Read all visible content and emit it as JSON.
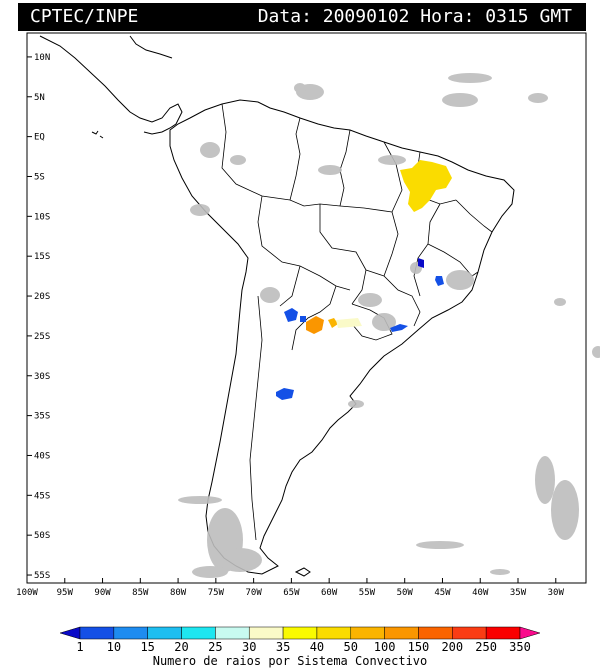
{
  "header": {
    "org": "CPTEC/INPE",
    "timestamp": "Data: 20090102 Hora: 0315 GMT"
  },
  "map": {
    "lat_range": [
      -56,
      13
    ],
    "lon_range": [
      -100,
      -26
    ],
    "lat_ticks": [
      "10N",
      "5N",
      "EQ",
      "5S",
      "10S",
      "15S",
      "20S",
      "25S",
      "30S",
      "35S",
      "40S",
      "45S",
      "50S",
      "55S"
    ],
    "lat_values": [
      10,
      5,
      0,
      -5,
      -10,
      -15,
      -20,
      -25,
      -30,
      -35,
      -40,
      -45,
      -50,
      -55
    ],
    "lon_ticks": [
      "100W",
      "95W",
      "90W",
      "85W",
      "80W",
      "75W",
      "70W",
      "65W",
      "60W",
      "55W",
      "50W",
      "45W",
      "40W",
      "35W",
      "30W"
    ],
    "lon_values": [
      -100,
      -95,
      -90,
      -85,
      -80,
      -75,
      -70,
      -65,
      -60,
      -55,
      -50,
      -45,
      -40,
      -35,
      -30
    ]
  },
  "legend": {
    "labels": [
      "1",
      "10",
      "15",
      "20",
      "25",
      "30",
      "35",
      "40",
      "50",
      "100",
      "150",
      "200",
      "250",
      "350"
    ],
    "colors": [
      "#0a0ac8",
      "#1450e6",
      "#1e8cf0",
      "#1ebef0",
      "#1ee6f0",
      "#c8faf0",
      "#fafac8",
      "#fafa00",
      "#fadc00",
      "#fab400",
      "#fa9600",
      "#fa6400",
      "#fa3c14",
      "#fa0000",
      "#fa0a8c"
    ],
    "caption": "Numero de raios por Sistema Convectivo"
  }
}
